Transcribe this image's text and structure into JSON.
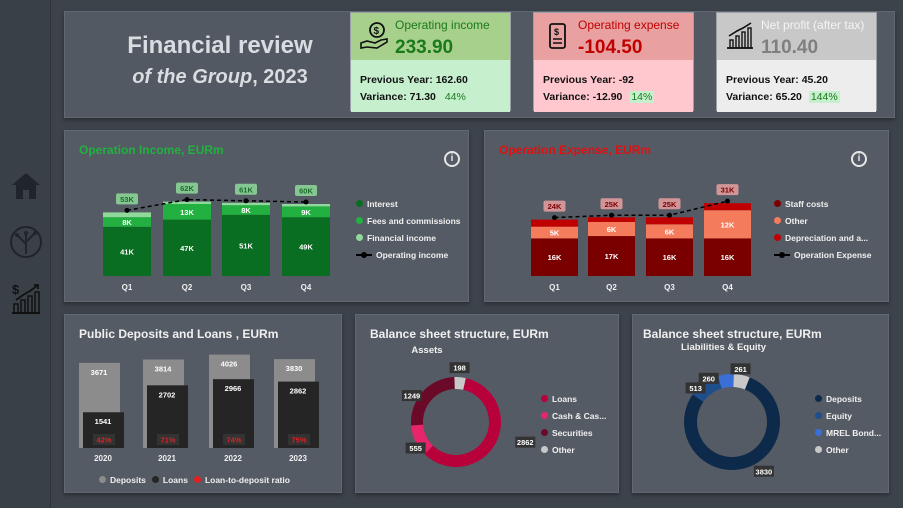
{
  "header": {
    "title": "Financial review",
    "subtitle_prefix": "of the Group",
    "subtitle_year": ", 2023"
  },
  "kpis": [
    {
      "label": "Operating income",
      "value": "233.90",
      "prev_label": "Previous Year:",
      "prev_value": "162.60",
      "var_label": "Variance:",
      "var_value": "71.30",
      "var_pct": "44%",
      "head_bg": "#a8d08d",
      "body_bg": "#c6efce",
      "color": "#1a7a1a",
      "icon": "money-hand-icon"
    },
    {
      "label": "Operating expense",
      "value": "-104.50",
      "prev_label": "Previous Year:",
      "prev_value": "-92",
      "var_label": "Variance:",
      "var_value": "-12.90",
      "var_pct": "14%",
      "head_bg": "#e8a0a0",
      "body_bg": "#ffc7ce",
      "color": "#c00000",
      "icon": "receipt-icon"
    },
    {
      "label": "Net profit (after tax)",
      "value": "110.40",
      "prev_label": "Previous Year:",
      "prev_value": "45.20",
      "var_label": "Variance:",
      "var_value": "65.20",
      "var_pct": "144%",
      "head_bg": "#c8c8c8",
      "body_bg": "#ededed",
      "color": "#7f7f7f",
      "icon": "growth-chart-icon"
    }
  ],
  "nav": {
    "items": [
      "home-icon",
      "tree-icon",
      "finance-chart-icon"
    ]
  },
  "income_chart": {
    "title": "Operation Income, EURm",
    "legend": [
      "Interest",
      "Fees and commissions",
      "Financial income",
      "Operating income"
    ],
    "colors": [
      "#0a6e22",
      "#22b040",
      "#8fd99a"
    ]
  },
  "expense_chart": {
    "title": "Operation Expense, EURm",
    "legend": [
      "Staff costs",
      "Other",
      "Depreciation and a...",
      "Operation Expense"
    ],
    "colors": [
      "#7a0000",
      "#f47c5c",
      "#c00000"
    ]
  },
  "deposits_chart": {
    "title": "Public Deposits and Loans , EURm",
    "legend": [
      "Deposits",
      "Loans",
      "Loan-to-deposit ratio"
    ]
  },
  "assets_chart": {
    "title": "Balance sheet structure, EURm",
    "subtitle": "Assets",
    "legend": [
      "Loans",
      "Cash & Cas...",
      "Securities",
      "Other"
    ]
  },
  "liab_chart": {
    "title": "Balance sheet structure, EURm",
    "subtitle": "Liabilities & Equity",
    "legend": [
      "Deposits",
      "Equity",
      "MREL Bond...",
      "Other"
    ]
  },
  "chart_data": [
    {
      "type": "bar",
      "title": "Operation Income, EURm",
      "categories": [
        "Q1",
        "Q2",
        "Q3",
        "Q4"
      ],
      "series": [
        {
          "name": "Interest",
          "values": [
            41,
            47,
            51,
            49
          ],
          "labels": [
            "41K",
            "47K",
            "51K",
            "49K"
          ]
        },
        {
          "name": "Fees and commissions",
          "values": [
            8,
            13,
            8,
            9
          ],
          "labels": [
            "8K",
            "13K",
            "8K",
            "9K"
          ]
        },
        {
          "name": "Financial income",
          "values": [
            4,
            2,
            2,
            2
          ],
          "labels": []
        },
        {
          "name": "Operating income",
          "values": [
            53,
            62,
            61,
            60
          ],
          "labels": [
            "53K",
            "62K",
            "61K",
            "60K"
          ]
        }
      ]
    },
    {
      "type": "bar",
      "title": "Operation Expense, EURm",
      "categories": [
        "Q1",
        "Q2",
        "Q3",
        "Q4"
      ],
      "series": [
        {
          "name": "Staff costs",
          "values": [
            16,
            17,
            16,
            16
          ],
          "labels": [
            "16K",
            "17K",
            "16K",
            "16K"
          ]
        },
        {
          "name": "Other",
          "values": [
            5,
            6,
            6,
            12
          ],
          "labels": [
            "5K",
            "6K",
            "6K",
            "12K"
          ]
        },
        {
          "name": "Depreciation and a...",
          "values": [
            3,
            2,
            3,
            3
          ],
          "labels": []
        },
        {
          "name": "Operation Expense",
          "values": [
            24,
            25,
            25,
            31
          ],
          "labels": [
            "24K",
            "25K",
            "25K",
            "31K"
          ]
        }
      ]
    },
    {
      "type": "bar",
      "title": "Public Deposits and Loans , EURm",
      "categories": [
        "2020",
        "2021",
        "2022",
        "2023"
      ],
      "series": [
        {
          "name": "Deposits",
          "values": [
            3671,
            3814,
            4026,
            3830
          ]
        },
        {
          "name": "Loans",
          "values": [
            1541,
            2702,
            2966,
            2862
          ]
        },
        {
          "name": "Loan-to-deposit ratio",
          "values": [
            "42%",
            "71%",
            "74%",
            "75%"
          ]
        }
      ]
    },
    {
      "type": "pie",
      "title": "Balance sheet structure, EURm",
      "subtitle": "Assets",
      "labels": [
        "Loans",
        "Cash & Cas...",
        "Securities",
        "Other"
      ],
      "values": [
        2862,
        555,
        1249,
        198
      ],
      "colors": [
        "#b8003a",
        "#e6256a",
        "#6b0a28",
        "#c8c8c8"
      ]
    },
    {
      "type": "pie",
      "title": "Balance sheet structure, EURm",
      "subtitle": "Liabilities & Equity",
      "labels": [
        "Deposits",
        "Equity",
        "MREL Bond...",
        "Other"
      ],
      "values": [
        3830,
        513,
        260,
        261
      ],
      "colors": [
        "#0d2a4a",
        "#1f4e8c",
        "#3a6fd8",
        "#c8c8c8"
      ]
    }
  ]
}
